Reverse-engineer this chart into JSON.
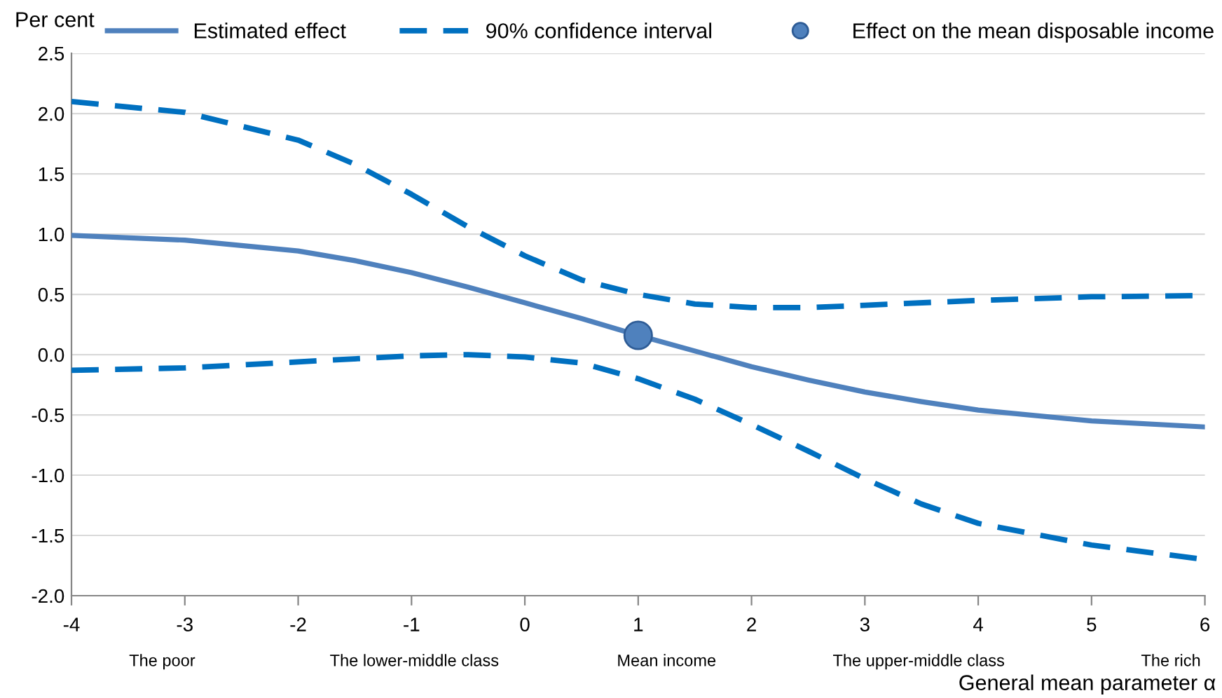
{
  "chart_data": {
    "type": "line",
    "ylabel": "Per cent",
    "xlabel": "General mean parameter α",
    "xlim": [
      -4,
      6
    ],
    "xticks": [
      -4,
      -3,
      -2,
      -1,
      0,
      1,
      2,
      3,
      4,
      5,
      6
    ],
    "ylim": [
      -2.0,
      2.5
    ],
    "yticks": [
      {
        "value": -2.0,
        "label": "-2.0"
      },
      {
        "value": -1.5,
        "label": "-1.5"
      },
      {
        "value": -1.0,
        "label": "-1.0"
      },
      {
        "value": -0.5,
        "label": "-0.5"
      },
      {
        "value": 0.0,
        "label": "0.0"
      },
      {
        "value": 0.5,
        "label": "0.5"
      },
      {
        "value": 1.0,
        "label": "1.0"
      },
      {
        "value": 1.5,
        "label": "1.5"
      },
      {
        "value": 2.0,
        "label": "2.0"
      },
      {
        "value": 2.5,
        "label": "2.5"
      }
    ],
    "grid": "y",
    "legend": "top",
    "series": [
      {
        "name": "Estimated effect",
        "line_style": "solid",
        "color": "#4f81bd",
        "x": [
          -4,
          -3,
          -2,
          -1.5,
          -1,
          -0.5,
          0,
          0.5,
          1,
          1.5,
          2,
          2.5,
          3,
          3.5,
          4,
          5,
          6
        ],
        "values": [
          0.99,
          0.95,
          0.86,
          0.78,
          0.68,
          0.56,
          0.43,
          0.3,
          0.16,
          0.03,
          -0.1,
          -0.21,
          -0.31,
          -0.39,
          -0.46,
          -0.55,
          -0.6
        ]
      },
      {
        "name": "90% confidence interval",
        "line_style": "dashed",
        "color": "#0070c0",
        "x": [
          -4,
          -3,
          -2,
          -1.5,
          -1,
          -0.5,
          0,
          0.5,
          1,
          1.5,
          2,
          2.5,
          3,
          4,
          5,
          6
        ],
        "values": [
          2.1,
          2.01,
          1.78,
          1.58,
          1.33,
          1.06,
          0.82,
          0.62,
          0.5,
          0.42,
          0.39,
          0.39,
          0.41,
          0.45,
          0.48,
          0.49
        ]
      },
      {
        "line_style": "dashed",
        "color": "#0070c0",
        "x": [
          -4,
          -3,
          -2,
          -1,
          -0.5,
          0,
          0.5,
          1,
          1.5,
          2,
          2.5,
          3,
          3.5,
          4,
          5,
          6
        ],
        "values": [
          -0.13,
          -0.11,
          -0.06,
          -0.01,
          0.0,
          -0.02,
          -0.07,
          -0.2,
          -0.37,
          -0.58,
          -0.8,
          -1.03,
          -1.24,
          -1.4,
          -1.58,
          -1.7
        ]
      },
      {
        "name": "Effect on the mean disposable income",
        "type": "scatter",
        "marker": "circle",
        "color": "#4f81bd",
        "x": [
          1.0
        ],
        "values": [
          0.16
        ]
      }
    ],
    "annotations": [
      "The poor",
      "The lower-middle class",
      "Mean income",
      "The upper-middle class",
      "The rich"
    ]
  }
}
